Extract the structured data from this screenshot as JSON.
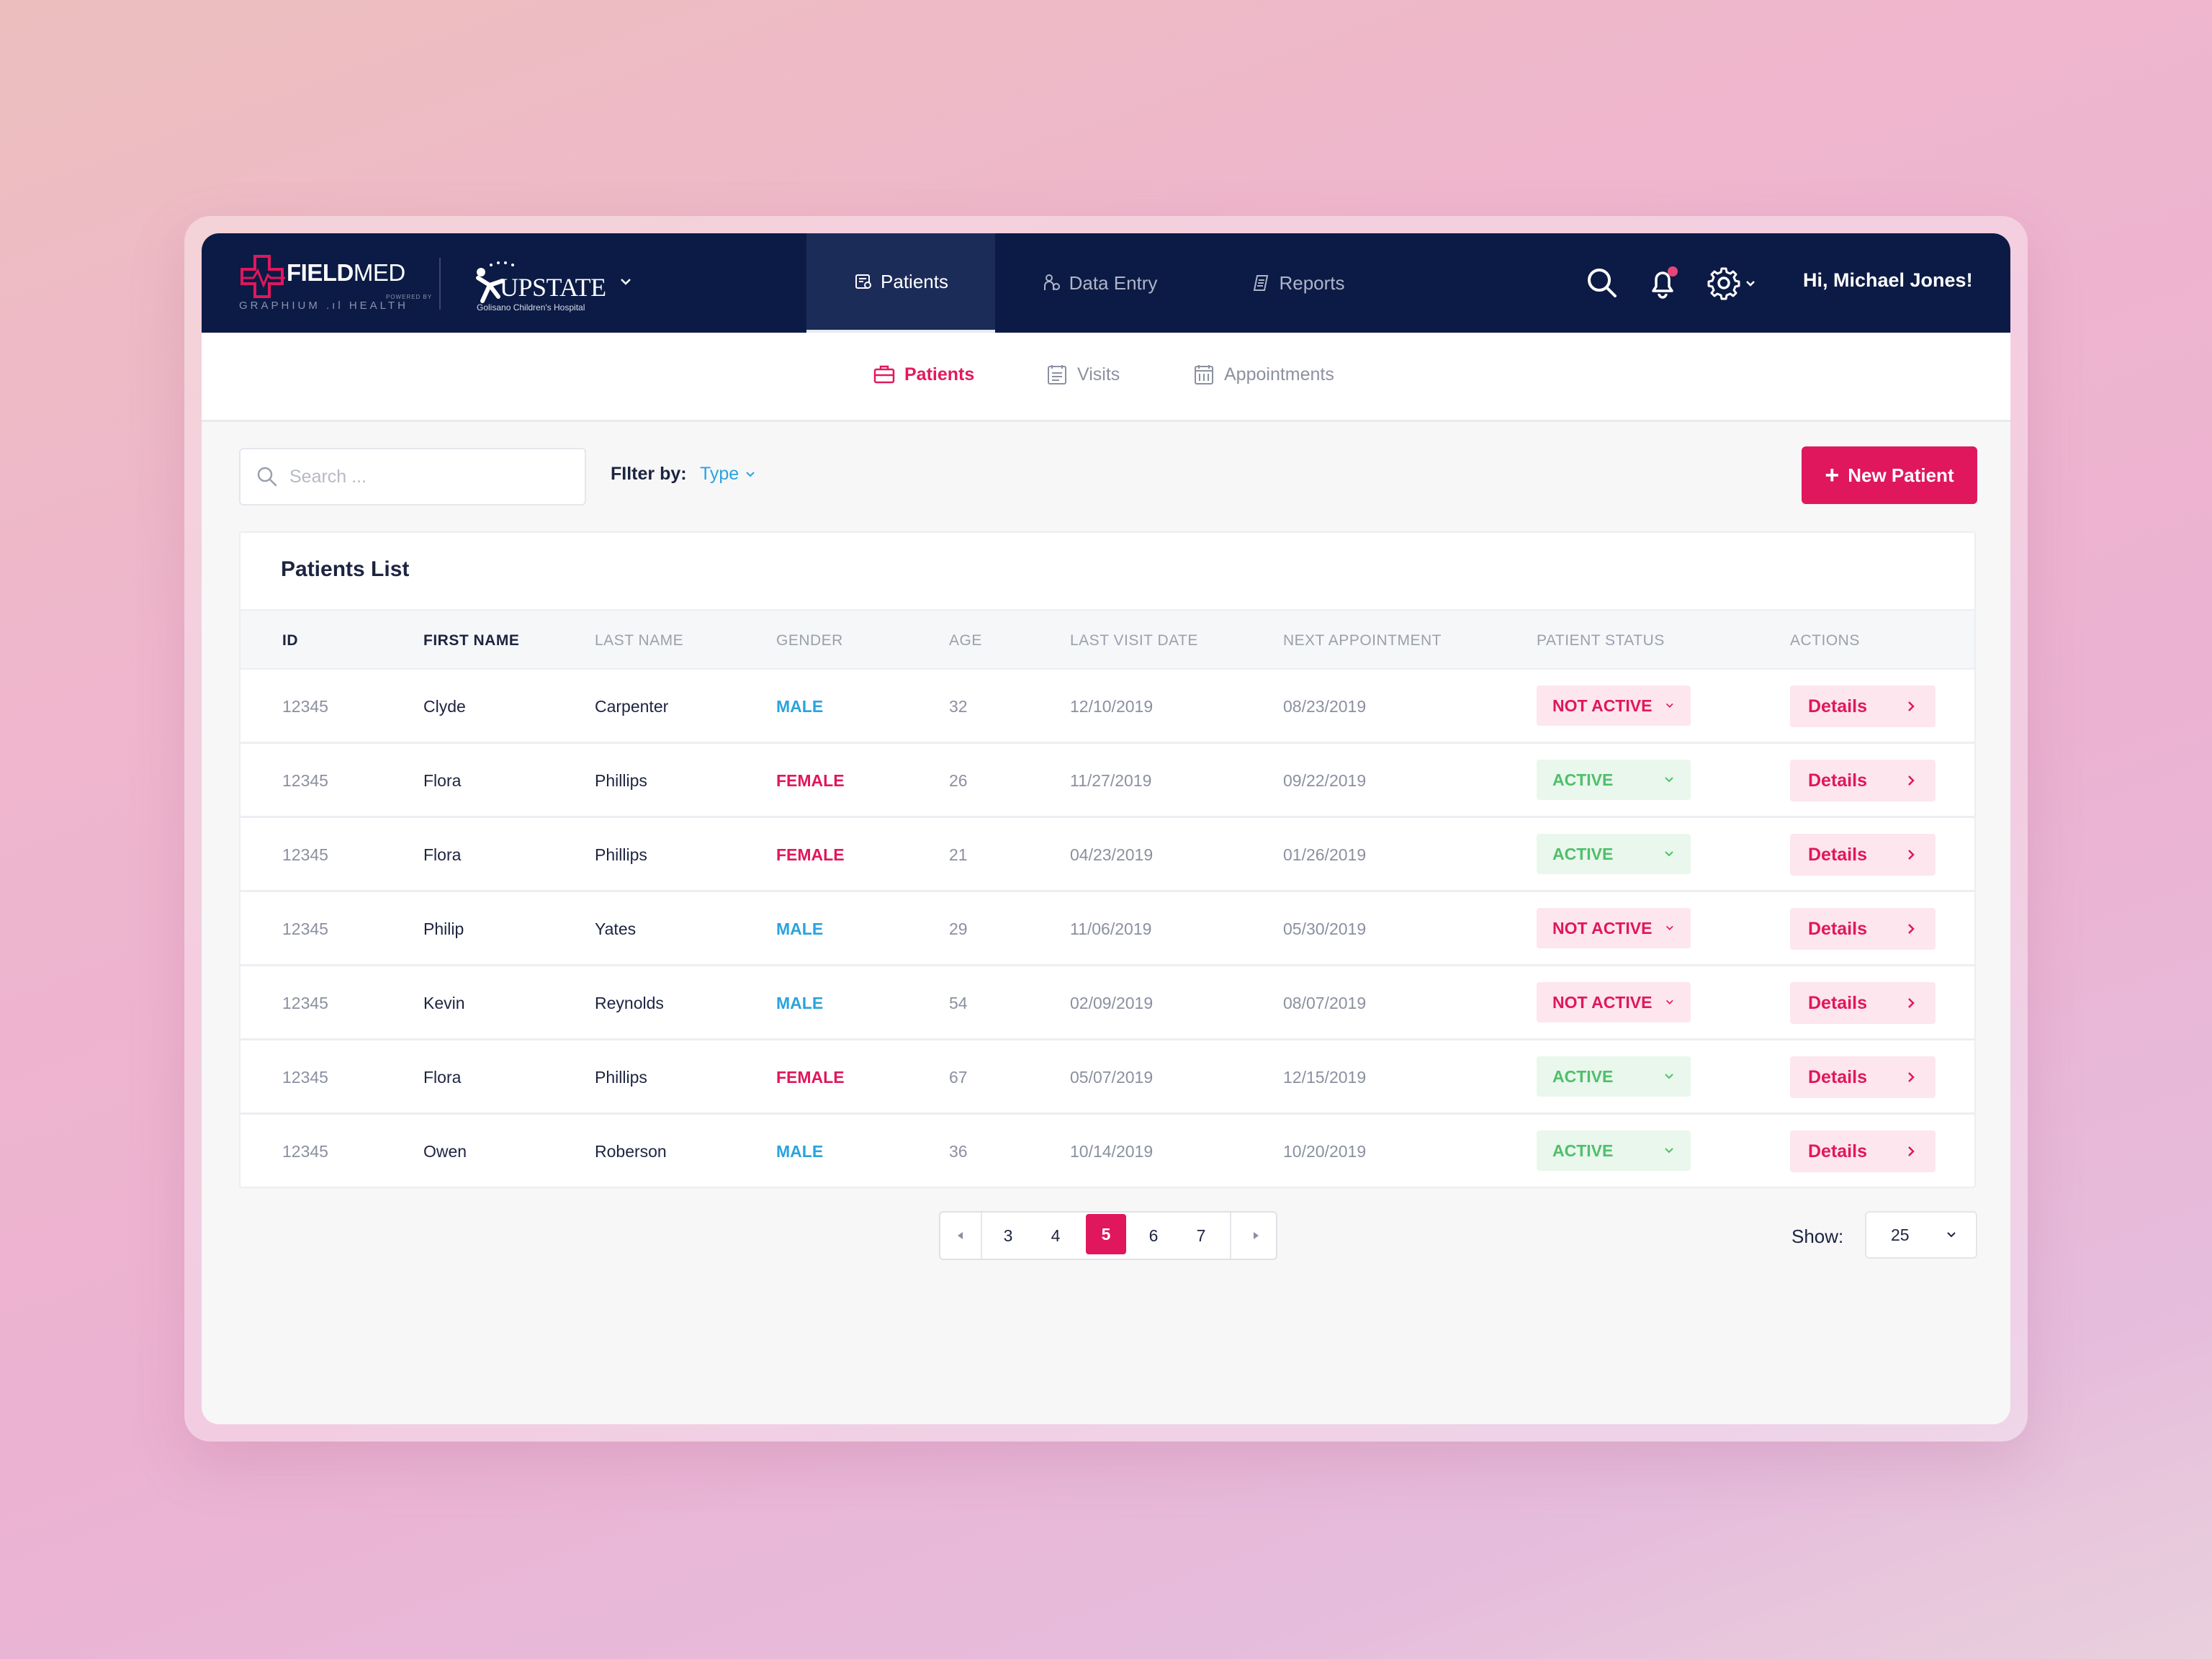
{
  "brand": {
    "fieldmed_bold": "FIELD",
    "fieldmed_light": "MED",
    "fieldmed_sub": "GRAPHIUM .ıl HEALTH",
    "fieldmed_powered": "POWERED BY",
    "upstate_name": "UPSTATE",
    "upstate_sub": "Golisano Children's Hospital"
  },
  "topnav": {
    "tabs": [
      {
        "label": "Patients",
        "icon": "patients-icon",
        "active": true
      },
      {
        "label": "Data Entry",
        "icon": "data-entry-icon",
        "active": false
      },
      {
        "label": "Reports",
        "icon": "reports-icon",
        "active": false
      }
    ],
    "greeting": "Hi, Michael Jones!"
  },
  "subnav": {
    "tabs": [
      {
        "label": "Patients",
        "icon": "briefcase-icon",
        "active": true
      },
      {
        "label": "Visits",
        "icon": "calendar-list-icon",
        "active": false
      },
      {
        "label": "Appointments",
        "icon": "calendar-grid-icon",
        "active": false
      }
    ]
  },
  "toolbar": {
    "search_placeholder": "Search ...",
    "filter_label": "FIlter by:",
    "filter_value": "Type",
    "new_button": "New Patient"
  },
  "table": {
    "title": "Patients List",
    "columns": [
      "ID",
      "FIRST NAME",
      "LAST NAME",
      "GENDER",
      "AGE",
      "LAST VISIT DATE",
      "NEXT APPOINTMENT",
      "PATIENT STATUS",
      "ACTIONS"
    ],
    "action_label": "Details",
    "rows": [
      {
        "id": "12345",
        "first": "Clyde",
        "last": "Carpenter",
        "gender": "MALE",
        "age": "32",
        "last_visit": "12/10/2019",
        "next_appt": "08/23/2019",
        "status": "NOT ACTIVE"
      },
      {
        "id": "12345",
        "first": "Flora",
        "last": "Phillips",
        "gender": "FEMALE",
        "age": "26",
        "last_visit": "11/27/2019",
        "next_appt": "09/22/2019",
        "status": "ACTIVE"
      },
      {
        "id": "12345",
        "first": "Flora",
        "last": "Phillips",
        "gender": "FEMALE",
        "age": "21",
        "last_visit": "04/23/2019",
        "next_appt": "01/26/2019",
        "status": "ACTIVE"
      },
      {
        "id": "12345",
        "first": "Philip",
        "last": "Yates",
        "gender": "MALE",
        "age": "29",
        "last_visit": "11/06/2019",
        "next_appt": "05/30/2019",
        "status": "NOT ACTIVE"
      },
      {
        "id": "12345",
        "first": "Kevin",
        "last": "Reynolds",
        "gender": "MALE",
        "age": "54",
        "last_visit": "02/09/2019",
        "next_appt": "08/07/2019",
        "status": "NOT ACTIVE"
      },
      {
        "id": "12345",
        "first": "Flora",
        "last": "Phillips",
        "gender": "FEMALE",
        "age": "67",
        "last_visit": "05/07/2019",
        "next_appt": "12/15/2019",
        "status": "ACTIVE"
      },
      {
        "id": "12345",
        "first": "Owen",
        "last": "Roberson",
        "gender": "MALE",
        "age": "36",
        "last_visit": "10/14/2019",
        "next_appt": "10/20/2019",
        "status": "ACTIVE"
      }
    ]
  },
  "pagination": {
    "pages": [
      "3",
      "4",
      "5",
      "6",
      "7"
    ],
    "current": "5",
    "show_label": "Show:",
    "page_size": "25"
  },
  "colors": {
    "navy": "#0c1b45",
    "accent": "#e0175c",
    "male": "#2aa3de",
    "active": "#4fbf6b"
  }
}
